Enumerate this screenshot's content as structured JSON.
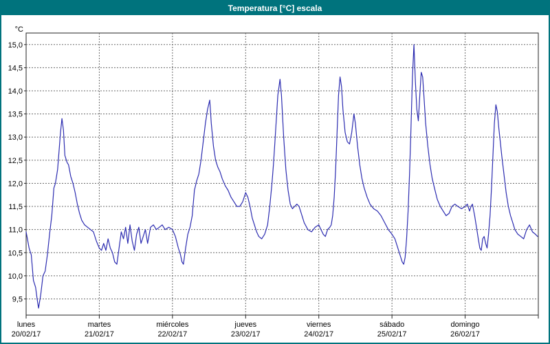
{
  "window": {
    "title": "Temperatura [°C] escala"
  },
  "colors": {
    "titlebar_bg": "#00737d",
    "titlebar_text": "#ffffff",
    "window_border": "#00737d",
    "plot_bg": "#ffffff",
    "axis": "#222222",
    "grid": "#6a6a6a",
    "line": "#2b2bb0",
    "label_text": "#000000"
  },
  "chart_data": {
    "type": "line",
    "title": "Temperatura [°C] escala",
    "ylabel": "°C",
    "xlabel": "",
    "grid": true,
    "legend_position": "none",
    "ylim": [
      9.15,
      15.25
    ],
    "xlim_days": [
      0,
      7
    ],
    "y_ticks": [
      {
        "value": 9.5,
        "label": "9,5"
      },
      {
        "value": 10.0,
        "label": "10,0"
      },
      {
        "value": 10.5,
        "label": "10,5"
      },
      {
        "value": 11.0,
        "label": "11,0"
      },
      {
        "value": 11.5,
        "label": "11,5"
      },
      {
        "value": 12.0,
        "label": "12,0"
      },
      {
        "value": 12.5,
        "label": "12,5"
      },
      {
        "value": 13.0,
        "label": "13,0"
      },
      {
        "value": 13.5,
        "label": "13,5"
      },
      {
        "value": 14.0,
        "label": "14,0"
      },
      {
        "value": 14.5,
        "label": "14,5"
      },
      {
        "value": 15.0,
        "label": "15,0"
      }
    ],
    "x_days": [
      {
        "name": "lunes",
        "date": "20/02/17"
      },
      {
        "name": "martes",
        "date": "21/02/17"
      },
      {
        "name": "miércoles",
        "date": "22/02/17"
      },
      {
        "name": "jueves",
        "date": "23/02/17"
      },
      {
        "name": "viernes",
        "date": "24/02/17"
      },
      {
        "name": "sábado",
        "date": "25/02/17"
      },
      {
        "name": "domingo",
        "date": "26/02/17"
      }
    ],
    "series": [
      {
        "name": "Temperatura [°C]",
        "color": "#2b2bb0",
        "x": [
          0.0,
          0.04,
          0.07,
          0.1,
          0.13,
          0.15,
          0.17,
          0.2,
          0.23,
          0.26,
          0.29,
          0.32,
          0.35,
          0.38,
          0.4,
          0.43,
          0.45,
          0.47,
          0.49,
          0.51,
          0.53,
          0.56,
          0.58,
          0.61,
          0.64,
          0.67,
          0.7,
          0.73,
          0.76,
          0.8,
          0.84,
          0.88,
          0.92,
          0.96,
          1.0,
          1.03,
          1.06,
          1.09,
          1.12,
          1.15,
          1.18,
          1.21,
          1.24,
          1.27,
          1.3,
          1.33,
          1.36,
          1.39,
          1.42,
          1.45,
          1.48,
          1.51,
          1.54,
          1.57,
          1.6,
          1.63,
          1.66,
          1.7,
          1.74,
          1.78,
          1.82,
          1.86,
          1.9,
          1.95,
          2.0,
          2.04,
          2.08,
          2.11,
          2.13,
          2.15,
          2.18,
          2.21,
          2.24,
          2.27,
          2.3,
          2.33,
          2.36,
          2.39,
          2.42,
          2.45,
          2.48,
          2.51,
          2.53,
          2.56,
          2.59,
          2.62,
          2.65,
          2.68,
          2.72,
          2.76,
          2.8,
          2.84,
          2.88,
          2.92,
          2.96,
          3.0,
          3.03,
          3.06,
          3.09,
          3.12,
          3.15,
          3.18,
          3.22,
          3.26,
          3.3,
          3.33,
          3.36,
          3.38,
          3.4,
          3.42,
          3.44,
          3.47,
          3.49,
          3.52,
          3.55,
          3.58,
          3.61,
          3.64,
          3.67,
          3.7,
          3.73,
          3.76,
          3.8,
          3.85,
          3.9,
          3.95,
          4.0,
          4.03,
          4.06,
          4.09,
          4.12,
          4.15,
          4.17,
          4.19,
          4.21,
          4.23,
          4.25,
          4.27,
          4.29,
          4.31,
          4.33,
          4.36,
          4.39,
          4.42,
          4.45,
          4.48,
          4.5,
          4.53,
          4.56,
          4.59,
          4.62,
          4.66,
          4.7,
          4.75,
          4.8,
          4.85,
          4.9,
          4.95,
          5.0,
          5.04,
          5.07,
          5.1,
          5.12,
          5.14,
          5.16,
          5.18,
          5.2,
          5.22,
          5.24,
          5.26,
          5.28,
          5.3,
          5.32,
          5.34,
          5.36,
          5.38,
          5.4,
          5.42,
          5.44,
          5.46,
          5.49,
          5.52,
          5.55,
          5.58,
          5.62,
          5.66,
          5.7,
          5.74,
          5.78,
          5.82,
          5.86,
          5.9,
          5.95,
          6.0,
          6.03,
          6.06,
          6.08,
          6.1,
          6.13,
          6.16,
          6.18,
          6.2,
          6.22,
          6.24,
          6.26,
          6.28,
          6.3,
          6.32,
          6.34,
          6.36,
          6.38,
          6.4,
          6.42,
          6.44,
          6.46,
          6.48,
          6.5,
          6.53,
          6.56,
          6.59,
          6.62,
          6.65,
          6.68,
          6.72,
          6.76,
          6.8,
          6.84,
          6.88,
          6.92,
          6.96,
          6.99
        ],
        "y": [
          10.95,
          10.6,
          10.45,
          9.9,
          9.75,
          9.5,
          9.3,
          9.6,
          10.0,
          10.1,
          10.45,
          10.9,
          11.3,
          11.9,
          12.0,
          12.3,
          12.7,
          13.1,
          13.4,
          13.15,
          12.6,
          12.45,
          12.4,
          12.15,
          12.0,
          11.8,
          11.55,
          11.35,
          11.2,
          11.1,
          11.05,
          11.0,
          10.95,
          10.75,
          10.6,
          10.55,
          10.7,
          10.55,
          10.8,
          10.6,
          10.5,
          10.3,
          10.25,
          10.6,
          10.95,
          10.8,
          11.05,
          10.7,
          11.1,
          10.75,
          10.55,
          10.9,
          11.05,
          10.7,
          10.85,
          11.0,
          10.7,
          11.05,
          11.1,
          11.0,
          11.05,
          11.1,
          11.0,
          11.05,
          11.0,
          10.85,
          10.6,
          10.45,
          10.3,
          10.25,
          10.6,
          10.9,
          11.05,
          11.3,
          11.85,
          12.05,
          12.2,
          12.5,
          12.9,
          13.3,
          13.6,
          13.8,
          13.3,
          12.8,
          12.5,
          12.35,
          12.25,
          12.1,
          11.95,
          11.85,
          11.7,
          11.6,
          11.5,
          11.5,
          11.6,
          11.8,
          11.7,
          11.5,
          11.25,
          11.1,
          10.95,
          10.85,
          10.8,
          10.9,
          11.1,
          11.5,
          12.0,
          12.4,
          12.9,
          13.4,
          13.9,
          14.25,
          13.9,
          13.0,
          12.3,
          11.85,
          11.55,
          11.45,
          11.5,
          11.55,
          11.5,
          11.35,
          11.15,
          11.0,
          10.95,
          11.05,
          11.1,
          11.0,
          10.9,
          10.85,
          11.0,
          11.05,
          11.1,
          11.3,
          11.7,
          12.3,
          13.1,
          13.9,
          14.3,
          14.1,
          13.6,
          13.1,
          12.9,
          12.85,
          13.1,
          13.5,
          13.3,
          12.8,
          12.4,
          12.1,
          11.9,
          11.7,
          11.55,
          11.45,
          11.4,
          11.3,
          11.15,
          11.0,
          10.9,
          10.8,
          10.65,
          10.5,
          10.4,
          10.3,
          10.25,
          10.4,
          10.8,
          11.4,
          12.2,
          13.2,
          14.3,
          15.0,
          14.2,
          13.6,
          13.35,
          13.9,
          14.4,
          14.3,
          13.8,
          13.3,
          12.8,
          12.4,
          12.1,
          11.9,
          11.65,
          11.5,
          11.4,
          11.3,
          11.35,
          11.5,
          11.55,
          11.5,
          11.45,
          11.5,
          11.55,
          11.4,
          11.5,
          11.55,
          11.3,
          11.0,
          10.8,
          10.6,
          10.55,
          10.8,
          10.85,
          10.7,
          10.6,
          10.9,
          11.3,
          11.9,
          12.6,
          13.3,
          13.7,
          13.55,
          13.2,
          12.9,
          12.6,
          12.2,
          11.8,
          11.5,
          11.3,
          11.15,
          11.0,
          10.9,
          10.85,
          10.8,
          11.0,
          11.1,
          10.95,
          10.9,
          10.85
        ]
      }
    ]
  }
}
